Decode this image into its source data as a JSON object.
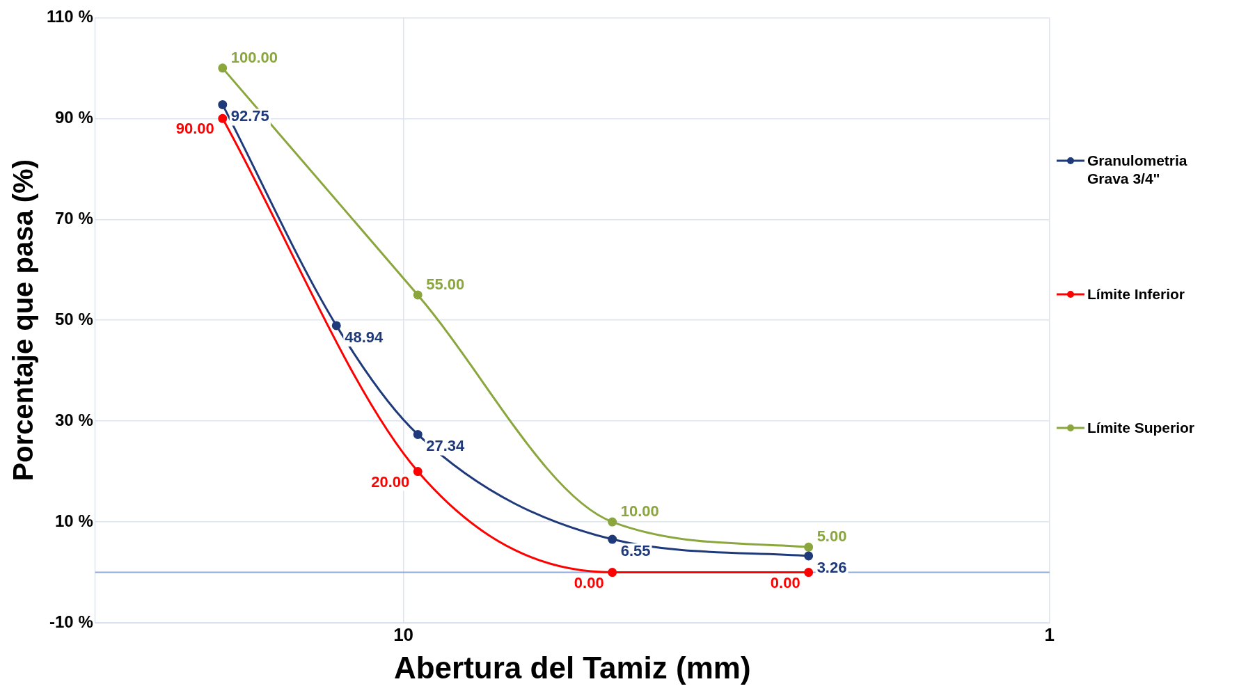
{
  "chart_data": {
    "type": "line",
    "xlabel": "Abertura del Tamiz (mm)",
    "ylabel": "Porcentaje que pasa (%)",
    "log": "x",
    "xlim": [
      30,
      1
    ],
    "xticks": [
      10,
      1
    ],
    "ylim": [
      -10,
      110
    ],
    "yticks": [
      {
        "value": -10,
        "label": "-10 %"
      },
      {
        "value": 10,
        "label": "10 %"
      },
      {
        "value": 30,
        "label": "30 %"
      },
      {
        "value": 50,
        "label": "50 %"
      },
      {
        "value": 70,
        "label": "70 %"
      },
      {
        "value": 90,
        "label": "90 %"
      },
      {
        "value": 110,
        "label": "110 %"
      }
    ],
    "grid": true,
    "legend": "right",
    "marker": "circle",
    "line_style": "solid",
    "ref_lines": [
      {
        "axis": "y",
        "value": 0,
        "color": "#8eaadb"
      }
    ],
    "series": [
      {
        "name": "Granulometria Grava 3/4\"",
        "color": "#1f3a7a",
        "x": [
          19.05,
          12.7,
          9.5,
          4.75,
          2.36
        ],
        "values": [
          92.75,
          48.94,
          27.34,
          6.55,
          3.26
        ],
        "value_labels": [
          "92.75",
          "48.94",
          "27.34",
          "6.55",
          "3.26"
        ]
      },
      {
        "name": "Límite Inferior",
        "color": "#ff0000",
        "x": [
          19.05,
          9.5,
          4.75,
          2.36
        ],
        "values": [
          90,
          20,
          0,
          0
        ],
        "value_labels": [
          "90.00",
          "20.00",
          "0.00",
          "0.00"
        ]
      },
      {
        "name": "Límite Superior",
        "color": "#8aa63c",
        "x": [
          19.05,
          9.5,
          4.75,
          2.36
        ],
        "values": [
          100,
          55,
          10,
          5
        ],
        "value_labels": [
          "100.00",
          "55.00",
          "10.00",
          "5.00"
        ]
      }
    ]
  }
}
